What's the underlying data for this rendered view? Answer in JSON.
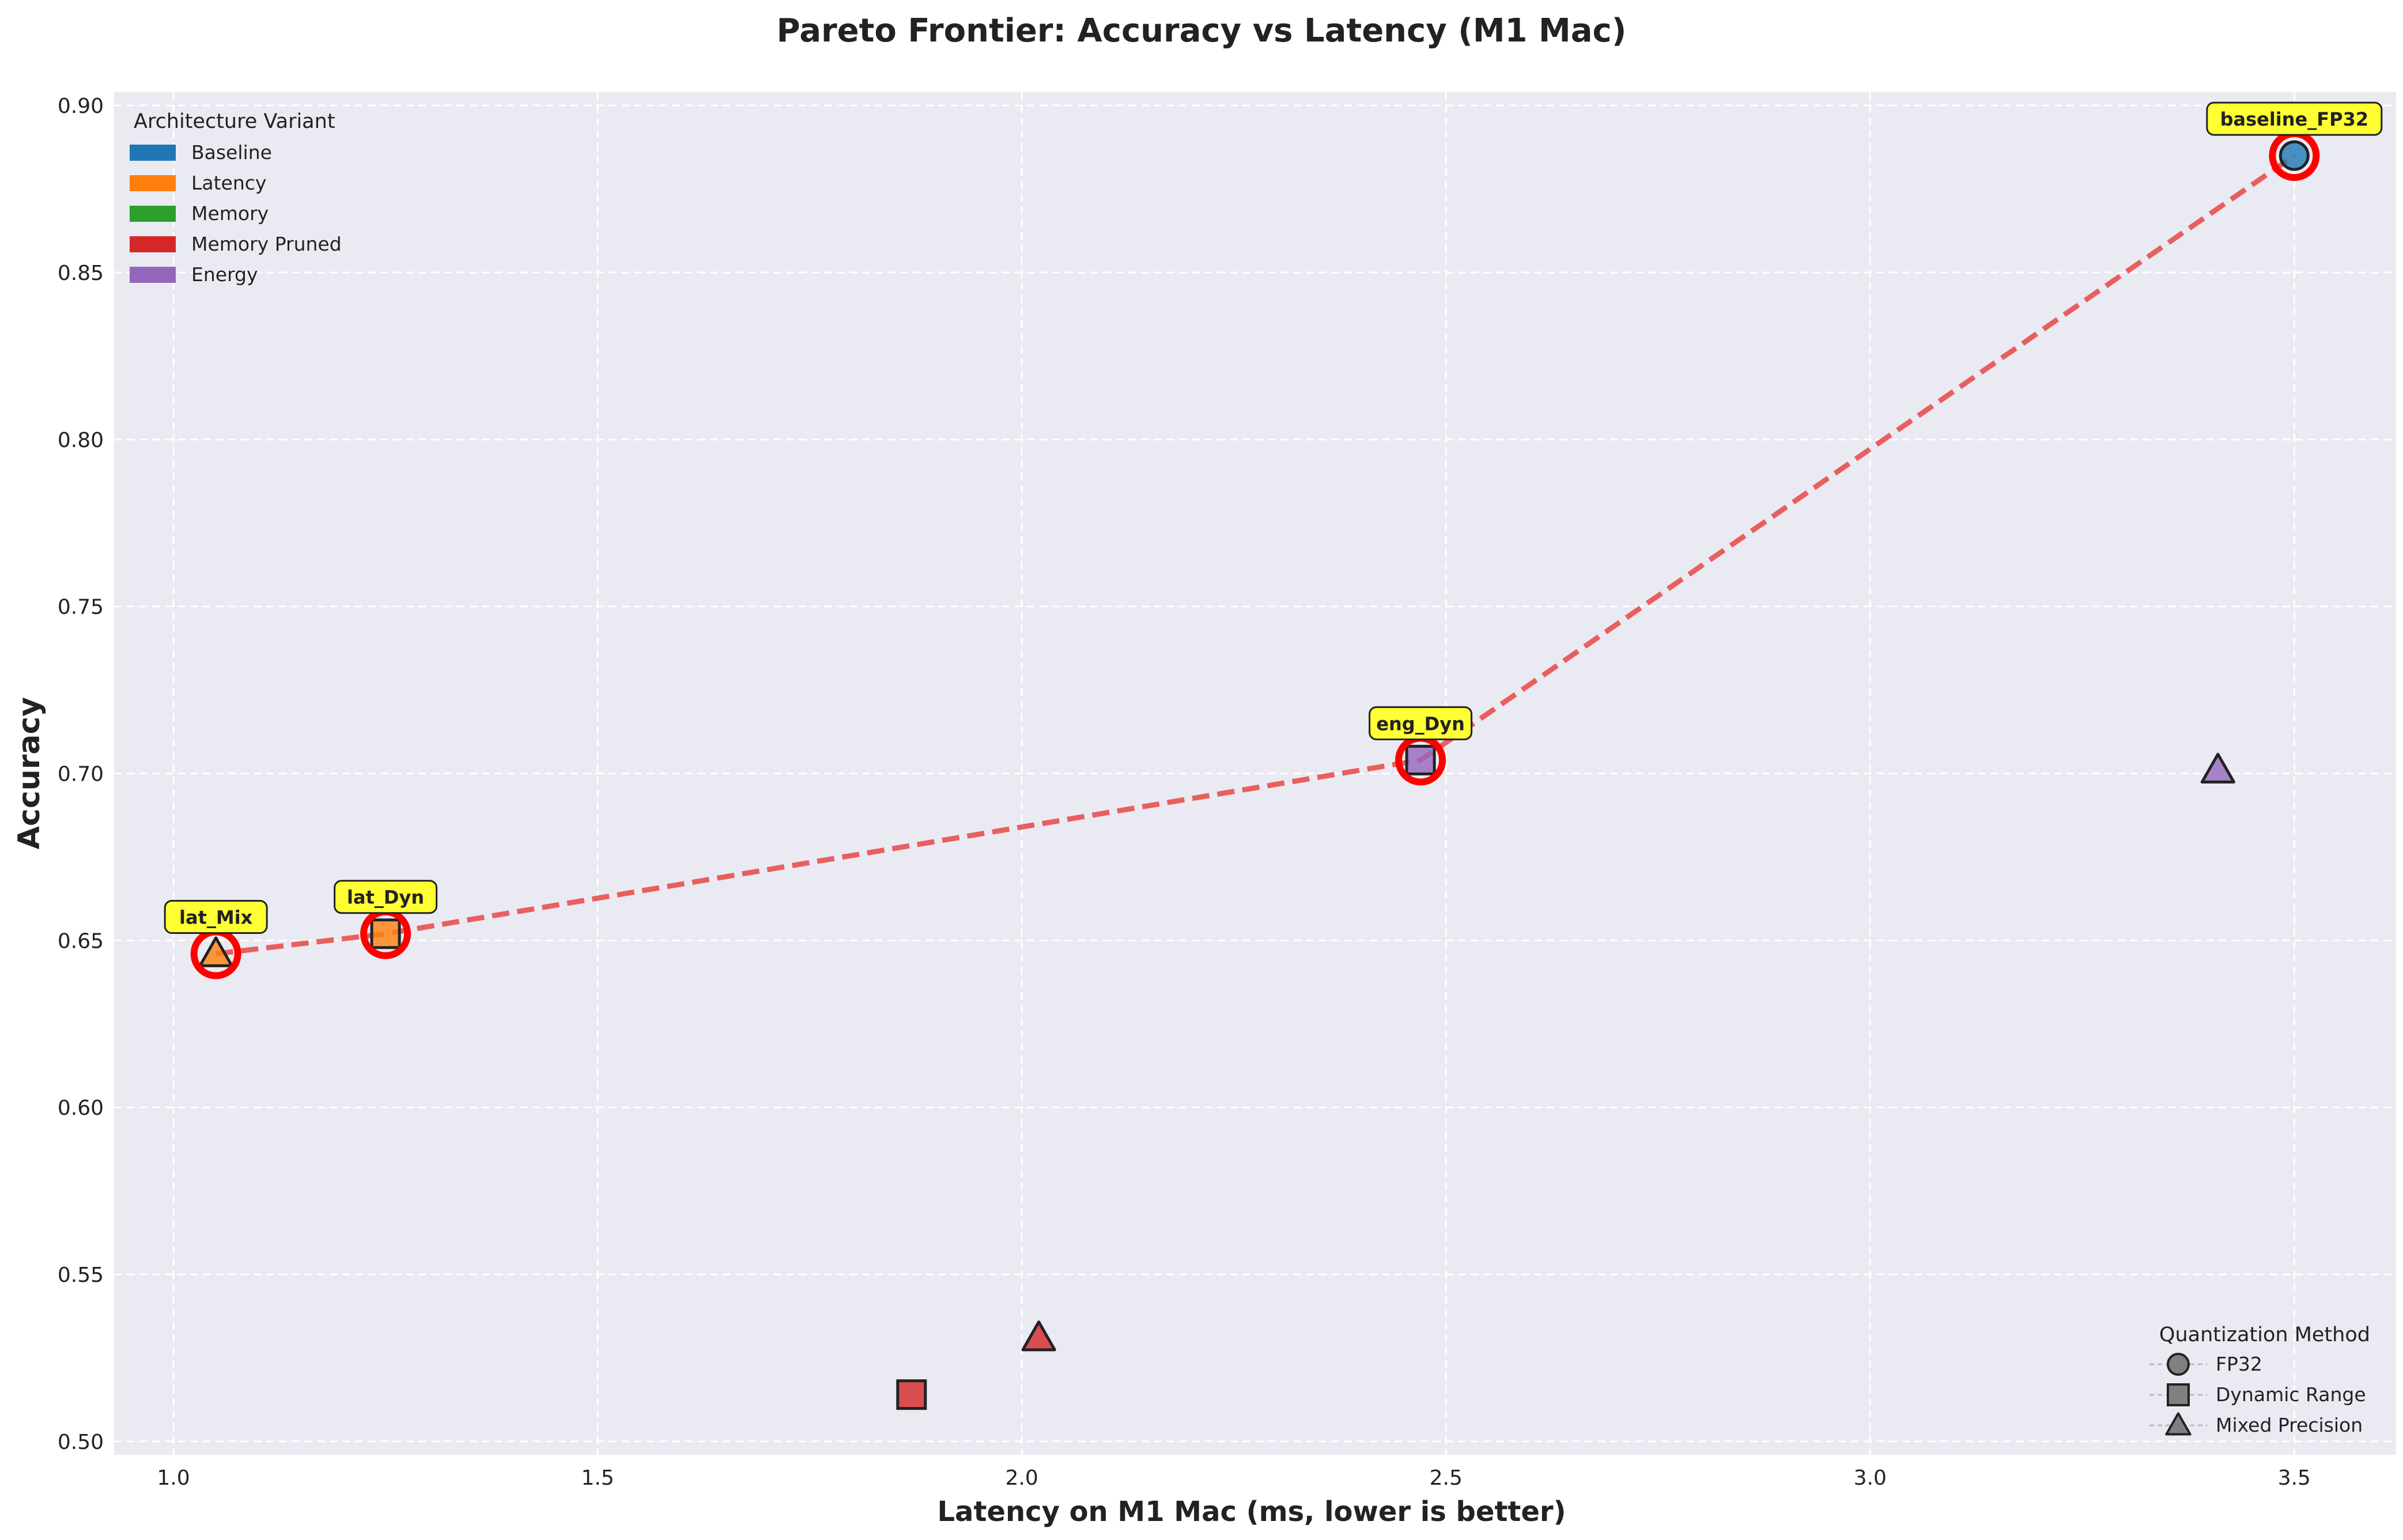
{
  "chart_data": {
    "type": "scatter",
    "title": "Pareto Frontier: Accuracy vs Latency (M1 Mac)",
    "xlabel": "Latency on M1 Mac (ms, lower is better)",
    "ylabel": "Accuracy",
    "xlim": [
      0.93,
      3.62
    ],
    "ylim": [
      0.496,
      0.904
    ],
    "x_ticks": [
      "1.0",
      "1.5",
      "2.0",
      "2.5",
      "3.0",
      "3.5"
    ],
    "x_tick_values": [
      1.0,
      1.5,
      2.0,
      2.5,
      3.0,
      3.5
    ],
    "y_ticks": [
      "0.50",
      "0.55",
      "0.60",
      "0.65",
      "0.70",
      "0.75",
      "0.80",
      "0.85",
      "0.90"
    ],
    "y_tick_values": [
      0.5,
      0.55,
      0.6,
      0.65,
      0.7,
      0.75,
      0.8,
      0.85,
      0.9
    ],
    "grid": true,
    "legend_variant": {
      "title": "Architecture Variant",
      "placement": "top-left",
      "entries": [
        {
          "label": "Baseline",
          "color": "#1f77b4"
        },
        {
          "label": "Latency",
          "color": "#ff7f0e"
        },
        {
          "label": "Memory",
          "color": "#2ca02c"
        },
        {
          "label": "Memory Pruned",
          "color": "#d62728"
        },
        {
          "label": "Energy",
          "color": "#9467bd"
        }
      ]
    },
    "legend_quant": {
      "title": "Quantization Method",
      "placement": "bottom-right",
      "entries": [
        {
          "label": "FP32",
          "marker": "circle"
        },
        {
          "label": "Dynamic Range",
          "marker": "square"
        },
        {
          "label": "Mixed Precision",
          "marker": "triangle"
        }
      ]
    },
    "points": [
      {
        "x": 3.5,
        "y": 0.885,
        "variant_color": "#1f77b4",
        "marker": "circle",
        "pareto": true,
        "label": "baseline_FP32"
      },
      {
        "x": 1.05,
        "y": 0.646,
        "variant_color": "#ff7f0e",
        "marker": "triangle",
        "pareto": true,
        "label": "lat_Mix"
      },
      {
        "x": 1.25,
        "y": 0.652,
        "variant_color": "#ff7f0e",
        "marker": "square",
        "pareto": true,
        "label": "lat_Dyn"
      },
      {
        "x": 2.47,
        "y": 0.704,
        "variant_color": "#9467bd",
        "marker": "square",
        "pareto": true,
        "label": "eng_Dyn"
      },
      {
        "x": 3.41,
        "y": 0.701,
        "variant_color": "#9467bd",
        "marker": "triangle",
        "pareto": false
      },
      {
        "x": 1.87,
        "y": 0.514,
        "variant_color": "#d62728",
        "marker": "square",
        "pareto": false
      },
      {
        "x": 2.02,
        "y": 0.531,
        "variant_color": "#d62728",
        "marker": "triangle",
        "pareto": false
      }
    ],
    "pareto_line": {
      "color": "#e8504f",
      "style": "dashed",
      "x": [
        1.05,
        1.25,
        2.47,
        3.5
      ],
      "y": [
        0.646,
        0.652,
        0.704,
        0.885
      ]
    },
    "colors": {
      "plot_background": "#eaeaf2",
      "grid": "#ffffff",
      "pareto_ring": "#ff0000",
      "annotation_box": "#ffff33"
    }
  }
}
